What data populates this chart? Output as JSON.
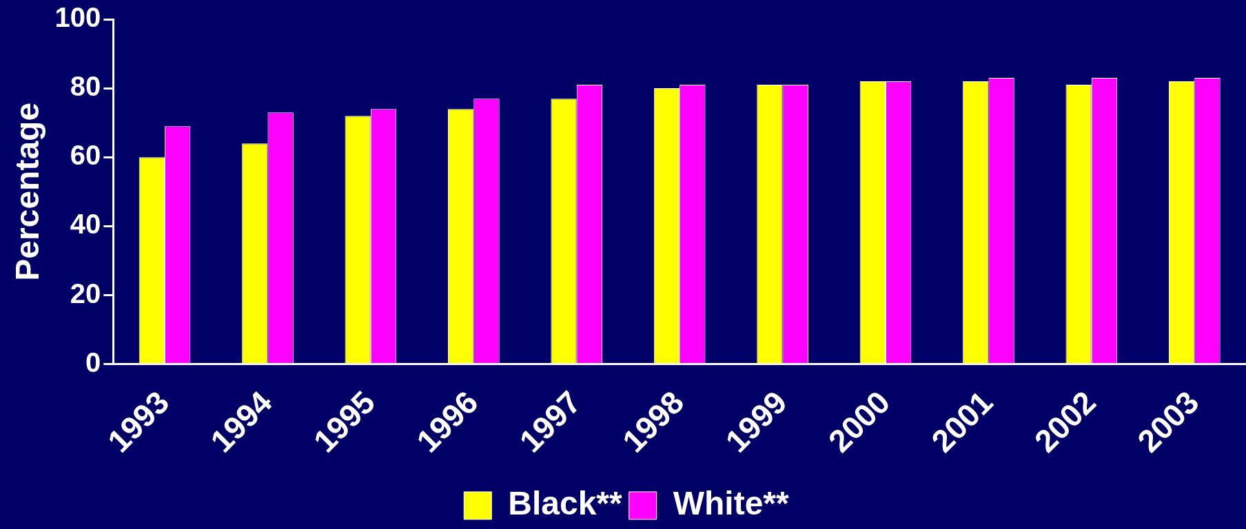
{
  "chart_data": {
    "type": "bar",
    "ylabel": "Percentage",
    "categories": [
      "1993",
      "1994",
      "1995",
      "1996",
      "1997",
      "1998",
      "1999",
      "2000",
      "2001",
      "2002",
      "2003"
    ],
    "series": [
      {
        "name": "Black**",
        "color": "#ffff00",
        "values": [
          60,
          64,
          72,
          74,
          77,
          80,
          81,
          82,
          82,
          81,
          82
        ]
      },
      {
        "name": "White**",
        "color": "#ff00ff",
        "values": [
          69,
          73,
          74,
          77,
          81,
          81,
          81,
          82,
          83,
          83,
          83
        ]
      }
    ],
    "ylim": [
      0,
      100
    ],
    "yticks": [
      0,
      20,
      40,
      60,
      80,
      100
    ],
    "legend": "bottom"
  }
}
